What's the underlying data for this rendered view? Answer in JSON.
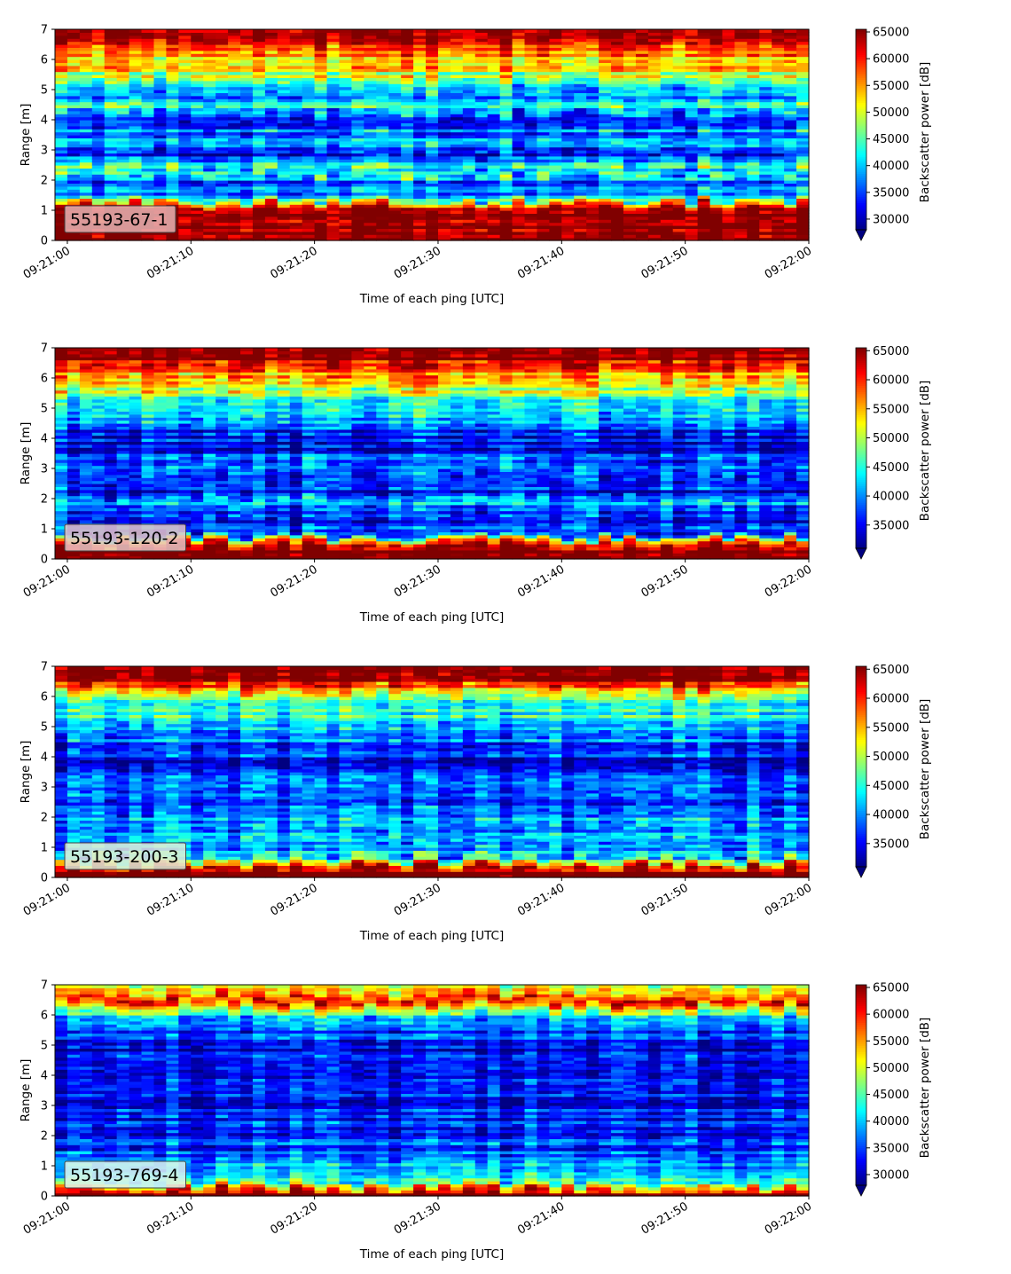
{
  "chart_data": [
    {
      "type": "heatmap",
      "label": "55193-67-1",
      "label_box_color": "#e8b4b4",
      "xlabel": "Time of each ping [UTC]",
      "ylabel": "Range [m]",
      "xticks": [
        "09:21:00",
        "09:21:10",
        "09:21:20",
        "09:21:30",
        "09:21:40",
        "09:21:50",
        "09:22:00"
      ],
      "xlim": [
        "09:20:59",
        "09:22:00"
      ],
      "yticks": [
        0,
        1,
        2,
        3,
        4,
        5,
        6,
        7
      ],
      "ylim": [
        0,
        7
      ],
      "colorbar": {
        "label": "Backscatter power [dB]",
        "min": 28000,
        "max": 65500,
        "ticks": [
          30000,
          35000,
          40000,
          45000,
          50000,
          55000,
          60000,
          65000
        ],
        "extend": "min"
      },
      "colormap": "jet",
      "profile": {
        "range_m": [
          0.1,
          0.8,
          1.15,
          1.4,
          1.7,
          2.0,
          2.3,
          2.6,
          2.9,
          3.2,
          3.5,
          3.8,
          4.1,
          4.4,
          4.8,
          5.2,
          5.5,
          5.8,
          6.1,
          6.4,
          6.7,
          7.0
        ],
        "power": [
          65500,
          65500,
          62000,
          42000,
          38000,
          36000,
          47000,
          38000,
          32000,
          37000,
          40000,
          34000,
          33000,
          43000,
          37000,
          44000,
          50000,
          52000,
          55000,
          60000,
          65500,
          65500
        ]
      }
    },
    {
      "type": "heatmap",
      "label": "55193-120-2",
      "label_box_color": "#e6c6c6",
      "xlabel": "Time of each ping [UTC]",
      "ylabel": "Range [m]",
      "xticks": [
        "09:21:00",
        "09:21:10",
        "09:21:20",
        "09:21:30",
        "09:21:40",
        "09:21:50",
        "09:22:00"
      ],
      "xlim": [
        "09:20:59",
        "09:22:00"
      ],
      "yticks": [
        0,
        1,
        2,
        3,
        4,
        5,
        6,
        7
      ],
      "ylim": [
        0,
        7
      ],
      "colorbar": {
        "label": "Backscatter power [dB]",
        "min": 31000,
        "max": 65500,
        "ticks": [
          35000,
          40000,
          45000,
          50000,
          55000,
          60000,
          65000
        ],
        "extend": "min"
      },
      "colormap": "jet",
      "profile": {
        "range_m": [
          0.1,
          0.35,
          0.6,
          0.8,
          1.1,
          1.5,
          1.9,
          2.2,
          2.6,
          3.0,
          3.4,
          3.8,
          4.2,
          4.6,
          5.0,
          5.4,
          5.8,
          6.1,
          6.4,
          6.7,
          7.0
        ],
        "power": [
          65500,
          65500,
          56000,
          37000,
          36000,
          38000,
          42000,
          36000,
          35000,
          40000,
          36000,
          34000,
          37000,
          40000,
          44000,
          48000,
          53000,
          56000,
          61000,
          65500,
          65500
        ]
      }
    },
    {
      "type": "heatmap",
      "label": "55193-200-3",
      "label_box_color": "#e0ecd8",
      "xlabel": "Time of each ping [UTC]",
      "ylabel": "Range [m]",
      "xticks": [
        "09:21:00",
        "09:21:10",
        "09:21:20",
        "09:21:30",
        "09:21:40",
        "09:21:50",
        "09:22:00"
      ],
      "xlim": [
        "09:20:59",
        "09:22:00"
      ],
      "yticks": [
        0,
        1,
        2,
        3,
        4,
        5,
        6,
        7
      ],
      "ylim": [
        0,
        7
      ],
      "colorbar": {
        "label": "Backscatter power [dB]",
        "min": 31000,
        "max": 65500,
        "ticks": [
          35000,
          40000,
          45000,
          50000,
          55000,
          60000,
          65000
        ],
        "extend": "min"
      },
      "colormap": "jet",
      "profile": {
        "range_m": [
          0.1,
          0.3,
          0.5,
          0.8,
          1.2,
          1.6,
          2.0,
          2.4,
          2.8,
          3.2,
          3.6,
          4.0,
          4.4,
          4.8,
          5.2,
          5.6,
          6.0,
          6.3,
          6.6,
          7.0
        ],
        "power": [
          65500,
          65500,
          52000,
          40000,
          38000,
          42000,
          40000,
          37000,
          36000,
          37000,
          35000,
          36000,
          38000,
          41000,
          43000,
          45000,
          50000,
          58000,
          65500,
          65500
        ]
      }
    },
    {
      "type": "heatmap",
      "label": "55193-769-4",
      "label_box_color": "#ddf2ee",
      "xlabel": "Time of each ping [UTC]",
      "ylabel": "Range [m]",
      "xticks": [
        "09:21:00",
        "09:21:10",
        "09:21:20",
        "09:21:30",
        "09:21:40",
        "09:21:50",
        "09:22:00"
      ],
      "xlim": [
        "09:20:59",
        "09:22:00"
      ],
      "yticks": [
        0,
        1,
        2,
        3,
        4,
        5,
        6,
        7
      ],
      "ylim": [
        0,
        7
      ],
      "colorbar": {
        "label": "Backscatter power [dB]",
        "min": 28000,
        "max": 65500,
        "ticks": [
          30000,
          35000,
          40000,
          45000,
          50000,
          55000,
          60000,
          65000
        ],
        "extend": "min"
      },
      "colormap": "jet",
      "profile": {
        "range_m": [
          0.1,
          0.25,
          0.45,
          0.7,
          1.0,
          1.4,
          1.8,
          2.2,
          2.6,
          3.0,
          3.5,
          4.0,
          4.5,
          5.0,
          5.5,
          5.9,
          6.2,
          6.5,
          6.8,
          7.0
        ],
        "power": [
          65500,
          58000,
          44000,
          41000,
          38000,
          36000,
          35000,
          34000,
          33500,
          33000,
          32500,
          32000,
          31500,
          33000,
          36000,
          40000,
          48000,
          62000,
          52000,
          48000
        ]
      }
    }
  ]
}
